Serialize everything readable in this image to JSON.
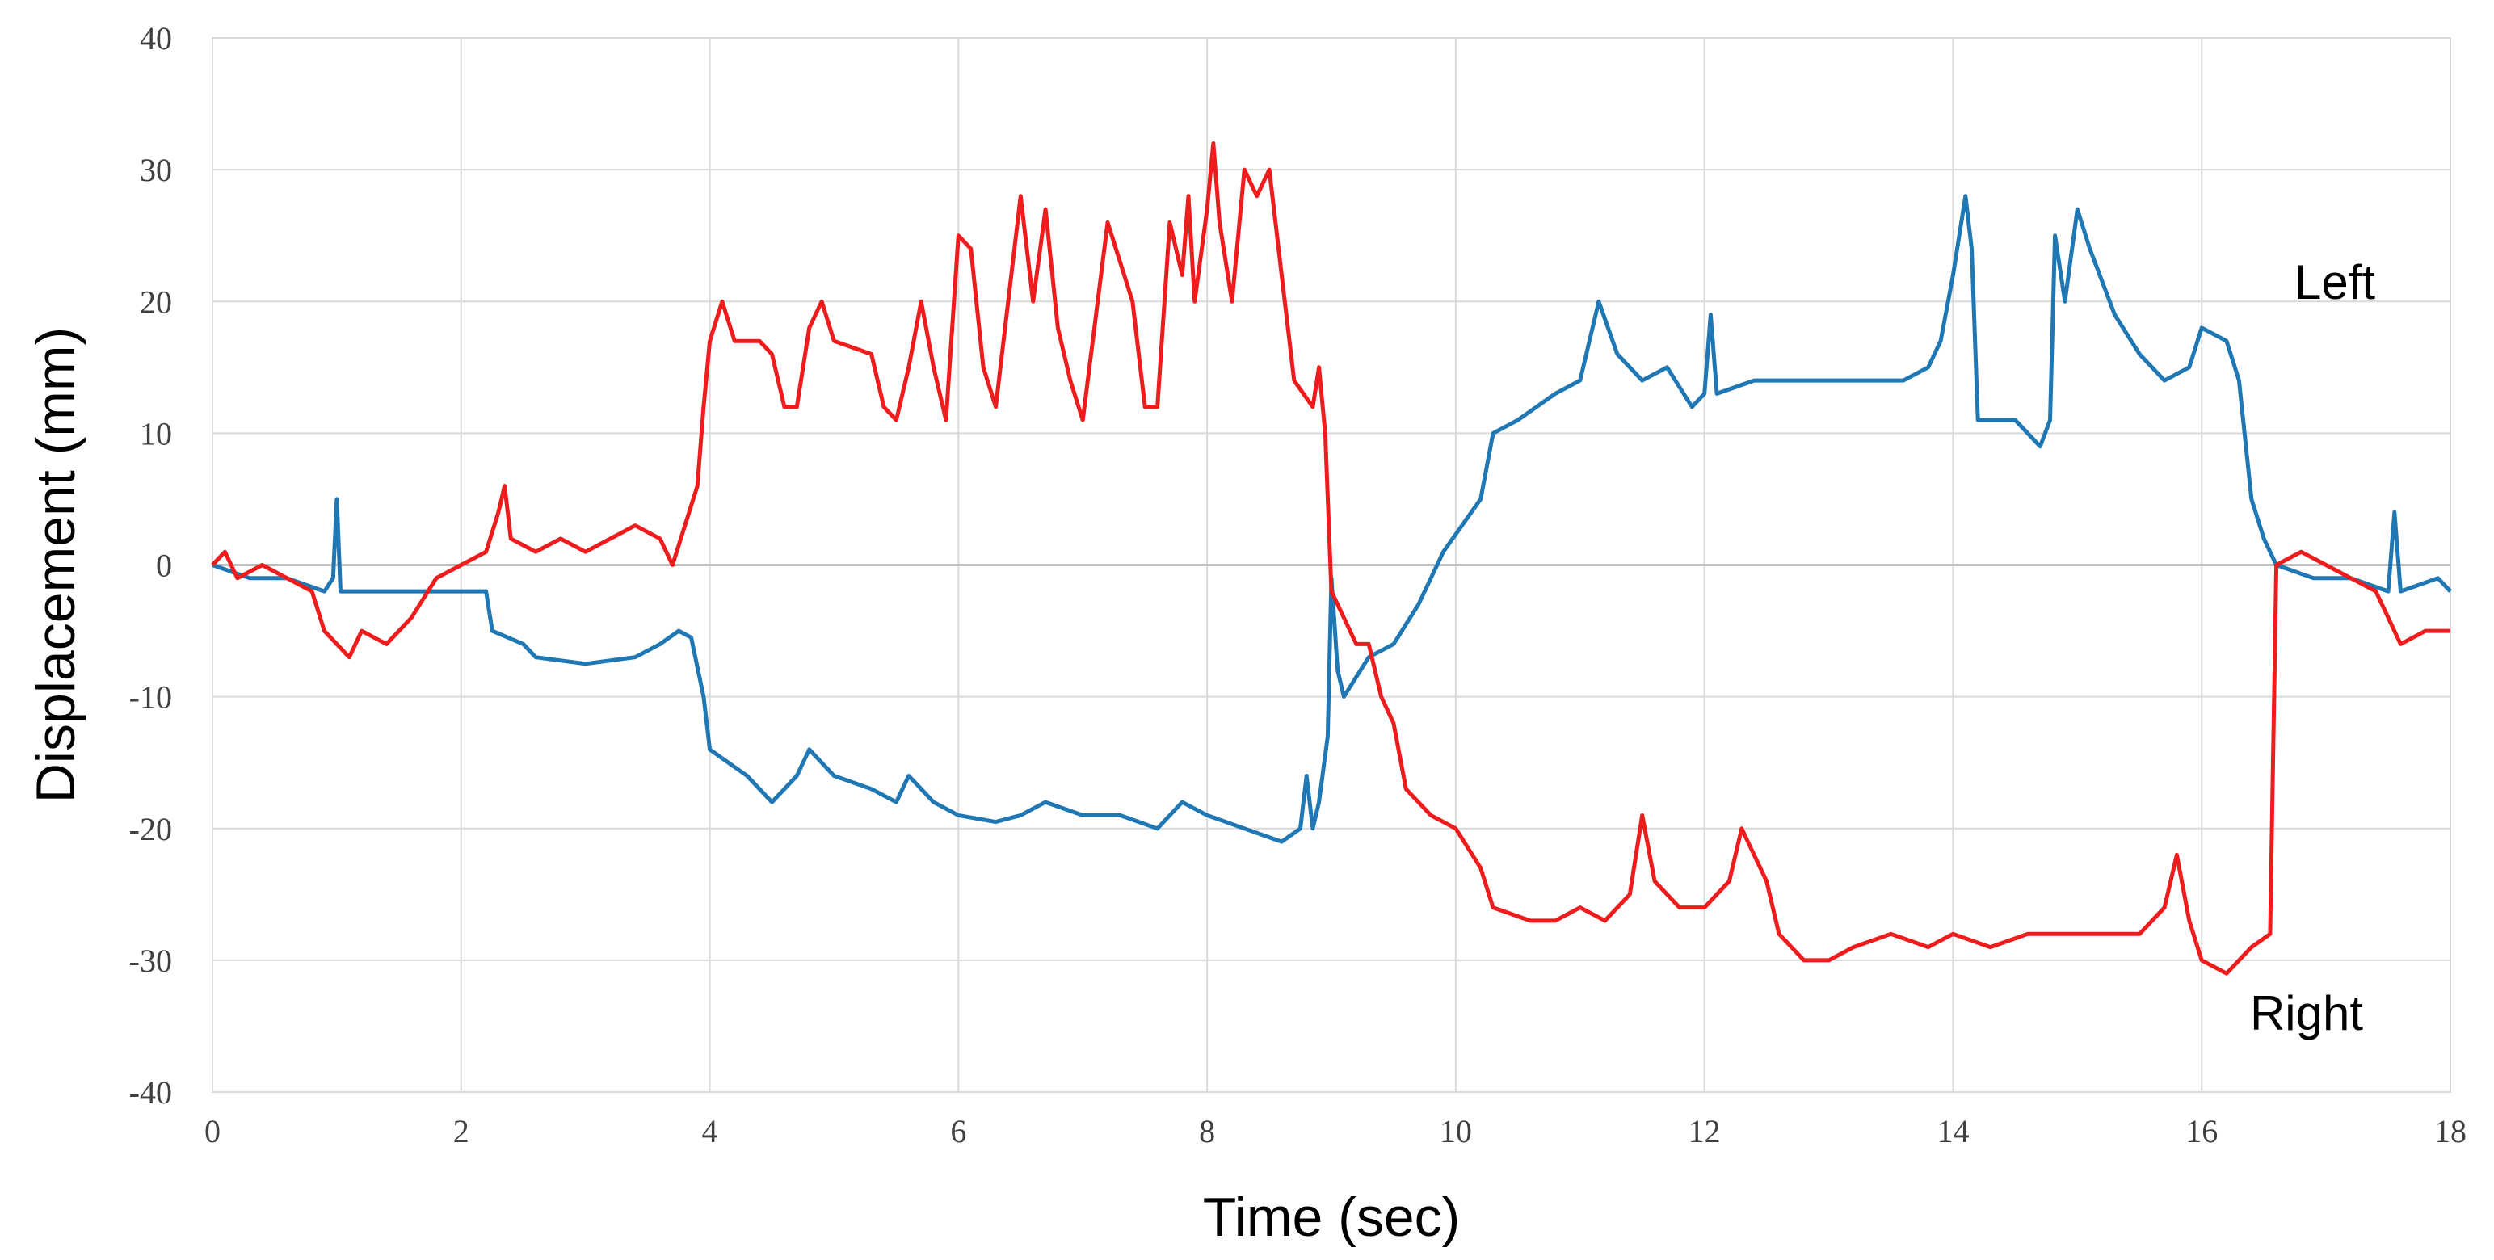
{
  "chart_data": {
    "type": "line",
    "title": "",
    "xlabel": "Time (sec)",
    "ylabel": "Displacement (mm)",
    "xlim": [
      0,
      18
    ],
    "ylim": [
      -40,
      40
    ],
    "xticks": [
      0,
      2,
      4,
      6,
      8,
      10,
      12,
      14,
      16,
      18
    ],
    "yticks": [
      40,
      30,
      20,
      10,
      0,
      -10,
      -20,
      -30,
      -40
    ],
    "grid": true,
    "series": [
      {
        "name": "Left",
        "color": "#1f77b4",
        "points": [
          [
            0,
            0
          ],
          [
            0.3,
            -1
          ],
          [
            0.6,
            -1
          ],
          [
            0.9,
            -2
          ],
          [
            0.97,
            -1
          ],
          [
            1.0,
            5
          ],
          [
            1.03,
            -2
          ],
          [
            1.3,
            -2
          ],
          [
            1.6,
            -2
          ],
          [
            2.0,
            -2
          ],
          [
            2.2,
            -2
          ],
          [
            2.25,
            -5
          ],
          [
            2.5,
            -6
          ],
          [
            2.6,
            -7
          ],
          [
            3.0,
            -7.5
          ],
          [
            3.4,
            -7
          ],
          [
            3.6,
            -6
          ],
          [
            3.75,
            -5
          ],
          [
            3.85,
            -5.5
          ],
          [
            3.95,
            -10
          ],
          [
            4.0,
            -14
          ],
          [
            4.3,
            -16
          ],
          [
            4.5,
            -18
          ],
          [
            4.7,
            -16
          ],
          [
            4.8,
            -14
          ],
          [
            5.0,
            -16
          ],
          [
            5.3,
            -17
          ],
          [
            5.5,
            -18
          ],
          [
            5.6,
            -16
          ],
          [
            5.8,
            -18
          ],
          [
            6.0,
            -19
          ],
          [
            6.3,
            -19.5
          ],
          [
            6.5,
            -19
          ],
          [
            6.7,
            -18
          ],
          [
            7.0,
            -19
          ],
          [
            7.3,
            -19
          ],
          [
            7.6,
            -20
          ],
          [
            7.8,
            -18
          ],
          [
            8.0,
            -19
          ],
          [
            8.3,
            -20
          ],
          [
            8.6,
            -21
          ],
          [
            8.75,
            -20
          ],
          [
            8.8,
            -16
          ],
          [
            8.85,
            -20
          ],
          [
            8.9,
            -18
          ],
          [
            8.97,
            -13
          ],
          [
            9.0,
            -1
          ],
          [
            9.05,
            -8
          ],
          [
            9.1,
            -10
          ],
          [
            9.3,
            -7
          ],
          [
            9.5,
            -6
          ],
          [
            9.7,
            -3
          ],
          [
            9.9,
            1
          ],
          [
            10.2,
            5
          ],
          [
            10.3,
            10
          ],
          [
            10.5,
            11
          ],
          [
            10.8,
            13
          ],
          [
            11.0,
            14
          ],
          [
            11.15,
            20
          ],
          [
            11.3,
            16
          ],
          [
            11.5,
            14
          ],
          [
            11.7,
            15
          ],
          [
            11.9,
            12
          ],
          [
            12.0,
            13
          ],
          [
            12.05,
            19
          ],
          [
            12.1,
            13
          ],
          [
            12.4,
            14
          ],
          [
            12.7,
            14
          ],
          [
            13.0,
            14
          ],
          [
            13.3,
            14
          ],
          [
            13.6,
            14
          ],
          [
            13.8,
            15
          ],
          [
            13.9,
            17
          ],
          [
            14.0,
            22
          ],
          [
            14.1,
            28
          ],
          [
            14.15,
            24
          ],
          [
            14.2,
            11
          ],
          [
            14.5,
            11
          ],
          [
            14.6,
            10
          ],
          [
            14.7,
            9
          ],
          [
            14.78,
            11
          ],
          [
            14.82,
            25
          ],
          [
            14.9,
            20
          ],
          [
            15.0,
            27
          ],
          [
            15.1,
            24
          ],
          [
            15.3,
            19
          ],
          [
            15.5,
            16
          ],
          [
            15.7,
            14
          ],
          [
            15.9,
            15
          ],
          [
            16.0,
            18
          ],
          [
            16.2,
            17
          ],
          [
            16.3,
            14
          ],
          [
            16.4,
            5
          ],
          [
            16.5,
            2
          ],
          [
            16.6,
            0
          ],
          [
            16.9,
            -1
          ],
          [
            17.2,
            -1
          ],
          [
            17.5,
            -2
          ],
          [
            17.55,
            4
          ],
          [
            17.6,
            -2
          ],
          [
            17.9,
            -1
          ],
          [
            18.0,
            -2
          ]
        ]
      },
      {
        "name": "Right",
        "color": "#ee1c1c",
        "points": [
          [
            0,
            0
          ],
          [
            0.1,
            1
          ],
          [
            0.2,
            -1
          ],
          [
            0.4,
            0
          ],
          [
            0.6,
            -1
          ],
          [
            0.8,
            -2
          ],
          [
            0.9,
            -5
          ],
          [
            1.0,
            -6
          ],
          [
            1.1,
            -7
          ],
          [
            1.2,
            -5
          ],
          [
            1.4,
            -6
          ],
          [
            1.6,
            -4
          ],
          [
            1.8,
            -1
          ],
          [
            2.0,
            0
          ],
          [
            2.2,
            1
          ],
          [
            2.3,
            4
          ],
          [
            2.35,
            6
          ],
          [
            2.4,
            2
          ],
          [
            2.6,
            1
          ],
          [
            2.8,
            2
          ],
          [
            3.0,
            1
          ],
          [
            3.2,
            2
          ],
          [
            3.4,
            3
          ],
          [
            3.6,
            2
          ],
          [
            3.7,
            0
          ],
          [
            3.8,
            3
          ],
          [
            3.9,
            6
          ],
          [
            3.95,
            12
          ],
          [
            4.0,
            17
          ],
          [
            4.1,
            20
          ],
          [
            4.2,
            17
          ],
          [
            4.4,
            17
          ],
          [
            4.5,
            16
          ],
          [
            4.6,
            12
          ],
          [
            4.7,
            12
          ],
          [
            4.8,
            18
          ],
          [
            4.9,
            20
          ],
          [
            5.0,
            17
          ],
          [
            5.3,
            16
          ],
          [
            5.4,
            12
          ],
          [
            5.5,
            11
          ],
          [
            5.6,
            15
          ],
          [
            5.7,
            20
          ],
          [
            5.8,
            15
          ],
          [
            5.9,
            11
          ],
          [
            6.0,
            25
          ],
          [
            6.1,
            24
          ],
          [
            6.2,
            15
          ],
          [
            6.3,
            12
          ],
          [
            6.5,
            28
          ],
          [
            6.6,
            20
          ],
          [
            6.7,
            27
          ],
          [
            6.8,
            18
          ],
          [
            6.9,
            14
          ],
          [
            7.0,
            11
          ],
          [
            7.2,
            26
          ],
          [
            7.4,
            20
          ],
          [
            7.5,
            12
          ],
          [
            7.6,
            12
          ],
          [
            7.7,
            26
          ],
          [
            7.8,
            22
          ],
          [
            7.85,
            28
          ],
          [
            7.9,
            20
          ],
          [
            8.0,
            27
          ],
          [
            8.05,
            32
          ],
          [
            8.1,
            26
          ],
          [
            8.2,
            20
          ],
          [
            8.3,
            30
          ],
          [
            8.4,
            28
          ],
          [
            8.5,
            30
          ],
          [
            8.6,
            22
          ],
          [
            8.7,
            14
          ],
          [
            8.85,
            12
          ],
          [
            8.9,
            15
          ],
          [
            8.95,
            10
          ],
          [
            9.0,
            -2
          ],
          [
            9.1,
            -4
          ],
          [
            9.2,
            -6
          ],
          [
            9.3,
            -6
          ],
          [
            9.4,
            -10
          ],
          [
            9.5,
            -12
          ],
          [
            9.6,
            -17
          ],
          [
            9.8,
            -19
          ],
          [
            10.0,
            -20
          ],
          [
            10.2,
            -23
          ],
          [
            10.3,
            -26
          ],
          [
            10.6,
            -27
          ],
          [
            10.8,
            -27
          ],
          [
            11.0,
            -26
          ],
          [
            11.2,
            -27
          ],
          [
            11.4,
            -25
          ],
          [
            11.5,
            -19
          ],
          [
            11.6,
            -24
          ],
          [
            11.8,
            -26
          ],
          [
            12.0,
            -26
          ],
          [
            12.2,
            -24
          ],
          [
            12.3,
            -20
          ],
          [
            12.4,
            -22
          ],
          [
            12.5,
            -24
          ],
          [
            12.6,
            -28
          ],
          [
            12.8,
            -30
          ],
          [
            13.0,
            -30
          ],
          [
            13.2,
            -29
          ],
          [
            13.5,
            -28
          ],
          [
            13.8,
            -29
          ],
          [
            14.0,
            -28
          ],
          [
            14.3,
            -29
          ],
          [
            14.6,
            -28
          ],
          [
            14.9,
            -28
          ],
          [
            15.2,
            -28
          ],
          [
            15.5,
            -28
          ],
          [
            15.7,
            -26
          ],
          [
            15.8,
            -22
          ],
          [
            15.9,
            -27
          ],
          [
            16.0,
            -30
          ],
          [
            16.2,
            -31
          ],
          [
            16.4,
            -29
          ],
          [
            16.55,
            -28
          ],
          [
            16.6,
            0
          ],
          [
            16.8,
            1
          ],
          [
            17.0,
            0
          ],
          [
            17.2,
            -1
          ],
          [
            17.4,
            -2
          ],
          [
            17.5,
            -4
          ],
          [
            17.6,
            -6
          ],
          [
            17.8,
            -5
          ],
          [
            18.0,
            -5
          ]
        ]
      }
    ]
  }
}
